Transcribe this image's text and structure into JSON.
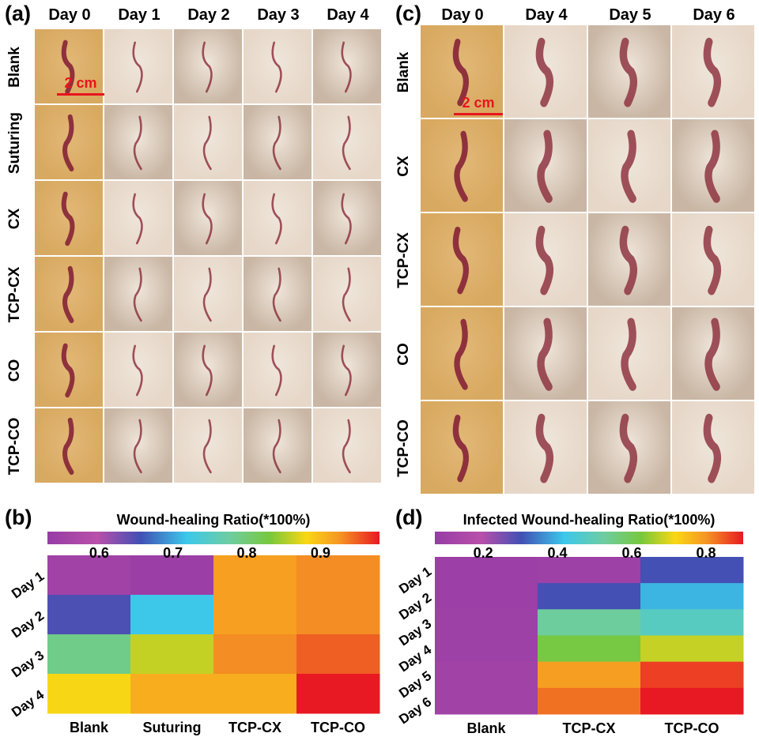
{
  "panel_labels": {
    "a": "(a)",
    "b": "(b)",
    "c": "(c)",
    "d": "(d)"
  },
  "panel_a": {
    "columns": [
      "Day 0",
      "Day 1",
      "Day 2",
      "Day 3",
      "Day 4"
    ],
    "rows": [
      "Blank",
      "Suturing",
      "CX",
      "TCP-CX",
      "CO",
      "TCP-CO"
    ],
    "scale_bar": "2 cm"
  },
  "panel_c": {
    "columns": [
      "Day 0",
      "Day 4",
      "Day 5",
      "Day 6"
    ],
    "rows": [
      "Blank",
      "CX",
      "TCP-CX",
      "CO",
      "TCP-CO"
    ],
    "scale_bar": "2 cm"
  },
  "colors": {
    "skin_light": "#e6d7c8",
    "skin_mid": "#c9b6a4",
    "skin_fur": "#d8a960",
    "wound": "#8a2a3a"
  },
  "chart_data": [
    {
      "type": "heatmap",
      "panel": "(b)",
      "title": "Wound-healing Ratio(*100%)",
      "colorbar": {
        "min": 0.53,
        "max": 0.98,
        "ticks": [
          0.6,
          0.7,
          0.8,
          0.9
        ],
        "tick_labels": [
          "0.6",
          "0.7",
          "0.8",
          "0.9"
        ]
      },
      "x_categories": [
        "Blank",
        "Suturing",
        "TCP-CX",
        "TCP-CO"
      ],
      "y_categories": [
        "Day 1",
        "Day 2",
        "Day 3",
        "Day 4"
      ],
      "values": [
        [
          0.55,
          0.54,
          0.92,
          0.93
        ],
        [
          0.65,
          0.72,
          0.92,
          0.93
        ],
        [
          0.79,
          0.86,
          0.93,
          0.95
        ],
        [
          0.88,
          0.91,
          0.91,
          0.98
        ]
      ]
    },
    {
      "type": "heatmap",
      "panel": "(d)",
      "title": "Infected Wound-healing Ratio(*100%)",
      "colorbar": {
        "min": 0.07,
        "max": 0.9,
        "ticks": [
          0.2,
          0.4,
          0.6,
          0.8
        ],
        "tick_labels": [
          "0.2",
          "0.4",
          "0.6",
          "0.8"
        ]
      },
      "x_categories": [
        "Blank",
        "TCP-CX",
        "TCP-CO"
      ],
      "y_categories": [
        "Day 1",
        "Day 2",
        "Day 3",
        "Day 4",
        "Day 5",
        "Day 6"
      ],
      "values": [
        [
          0.09,
          0.1,
          0.3
        ],
        [
          0.09,
          0.3,
          0.4
        ],
        [
          0.1,
          0.53,
          0.48
        ],
        [
          0.1,
          0.62,
          0.68
        ],
        [
          0.11,
          0.79,
          0.87
        ],
        [
          0.11,
          0.83,
          0.9
        ]
      ]
    }
  ]
}
